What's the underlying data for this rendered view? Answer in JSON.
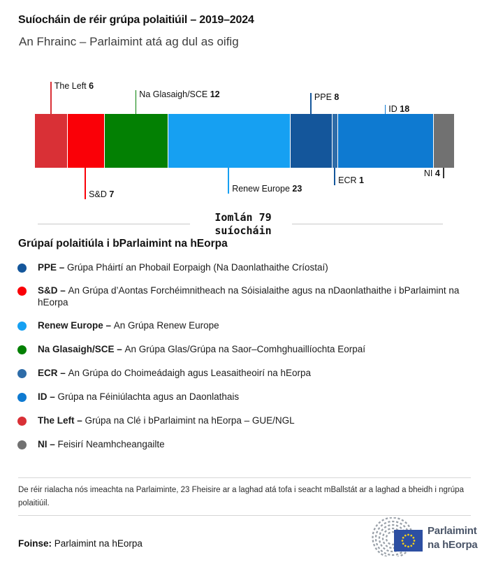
{
  "header": {
    "title": "Suíocháin de réir grúpa polaitiúil – 2019–2024",
    "subtitle": "An Fhrainc – Parlaimint atá ag dul as oifig"
  },
  "chart_data": {
    "type": "bar",
    "variant": "horizontal-stacked-seat-bar",
    "title": "Suíocháin de réir grúpa polaitiúil – 2019–2024",
    "subtitle": "An Fhrainc – Parlaimint atá ag dul as oifig",
    "total_seats": 79,
    "total_label_line1": "Iomlán 79",
    "total_label_line2": "suíocháin",
    "segments": [
      {
        "name": "The Left",
        "seats": 6,
        "color": "#d93036",
        "label_side": "top",
        "tick_len": 46
      },
      {
        "name": "S&D",
        "seats": 7,
        "color": "#fa0007",
        "label_side": "bottom",
        "tick_len": 45
      },
      {
        "name": "Na Glasaigh/SCE",
        "seats": 12,
        "color": "#038003",
        "label_side": "top",
        "tick_len": 34
      },
      {
        "name": "Renew Europe",
        "seats": 23,
        "color": "#16a0f2",
        "label_side": "bottom",
        "tick_len": 37
      },
      {
        "name": "PPE",
        "seats": 8,
        "color": "#14569b",
        "label_side": "top",
        "tick_len": 30
      },
      {
        "name": "ECR",
        "seats": 1,
        "color": "#2e6ca8",
        "label_side": "bottom",
        "tick_len": 25,
        "tick_color": "#14569b"
      },
      {
        "name": "ID",
        "seats": 18,
        "color": "#0e7ad1",
        "label_side": "top",
        "tick_len": 13
      },
      {
        "name": "NI",
        "seats": 4,
        "color": "#717171",
        "label_side": "bottom",
        "tick_len": 15,
        "tick_color": "#333333",
        "label_align": "left-of-tick"
      }
    ]
  },
  "legend": {
    "heading": "Grúpaí polaitiúla i bParlaimint na hEorpa",
    "items": [
      {
        "abbr": "PPE",
        "description": "Grúpa Pháirtí an Phobail Eorpaigh (Na Daonlathaithe Críostaí)",
        "color": "#14569b"
      },
      {
        "abbr": "S&D",
        "description": "An Grúpa d’Aontas Forchéimnitheach na Sóisialaithe agus na nDaonlathaithe i bParlaimint na hEorpa",
        "color": "#fa0007"
      },
      {
        "abbr": "Renew Europe",
        "description": "An Grúpa Renew Europe",
        "color": "#16a0f2"
      },
      {
        "abbr": "Na Glasaigh/SCE",
        "description": "An Grúpa Glas/Grúpa na Saor–Comhghuaillíochta Eorpaí",
        "color": "#038003"
      },
      {
        "abbr": "ECR",
        "description": "An Grúpa do Choimeádaigh agus Leasaitheoirí na hEorpa",
        "color": "#2e6ca8"
      },
      {
        "abbr": "ID",
        "description": "Grúpa na Féiniúlachta agus an Daonlathais",
        "color": "#0e7ad1"
      },
      {
        "abbr": "The Left",
        "description": "Grúpa na Clé i bParlaimint na hEorpa – GUE/NGL",
        "color": "#d93036"
      },
      {
        "abbr": "NI",
        "description": "Feisirí Neamhcheangailte",
        "color": "#717171"
      }
    ],
    "separator": "–"
  },
  "footer": {
    "note": "De réir rialacha nós imeachta na Parlaiminte, 23 Fheisire ar a laghad atá tofa i seacht mBallstát ar a laghad a bheidh i ngrúpa polaitiúil.",
    "source_label": "Foinse:",
    "source_value": "Parlaimint na hEorpa",
    "logo_line1": "Parlaimint",
    "logo_line2": "na hEorpa",
    "logo_colors": {
      "flag_blue": "#2d4fa2",
      "star_yellow": "#f7d117",
      "hemicycle_gray": "#9aa1a9"
    }
  }
}
